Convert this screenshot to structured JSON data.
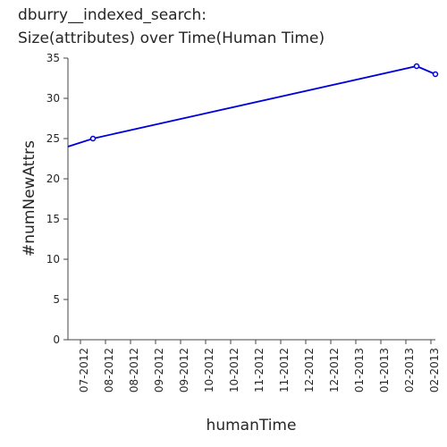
{
  "chart_data": {
    "type": "line",
    "title_line1": "dburry__indexed_search:",
    "title_line2": "Size(attributes) over Time(Human Time)",
    "xlabel": "humanTime",
    "ylabel": "#numNewAttrs",
    "ylim": [
      0,
      35
    ],
    "yticks": [
      "0",
      "5",
      "10",
      "15",
      "20",
      "25",
      "30",
      "35"
    ],
    "xticks": [
      "07-2012",
      "08-2012",
      "08-2012",
      "09-2012",
      "09-2012",
      "10-2012",
      "10-2012",
      "11-2012",
      "11-2012",
      "12-2012",
      "12-2012",
      "01-2013",
      "01-2013",
      "02-2013",
      "02-2013"
    ],
    "grid": false,
    "series": [
      {
        "color": "#0000dd",
        "points": [
          {
            "x": "06-2012",
            "y": 24
          },
          {
            "x": "07-2012",
            "y": 25,
            "marker": true
          },
          {
            "x": "02-2013",
            "y": 34,
            "marker": true
          },
          {
            "x": "02-2013",
            "y": 33,
            "marker": true
          }
        ]
      }
    ]
  }
}
